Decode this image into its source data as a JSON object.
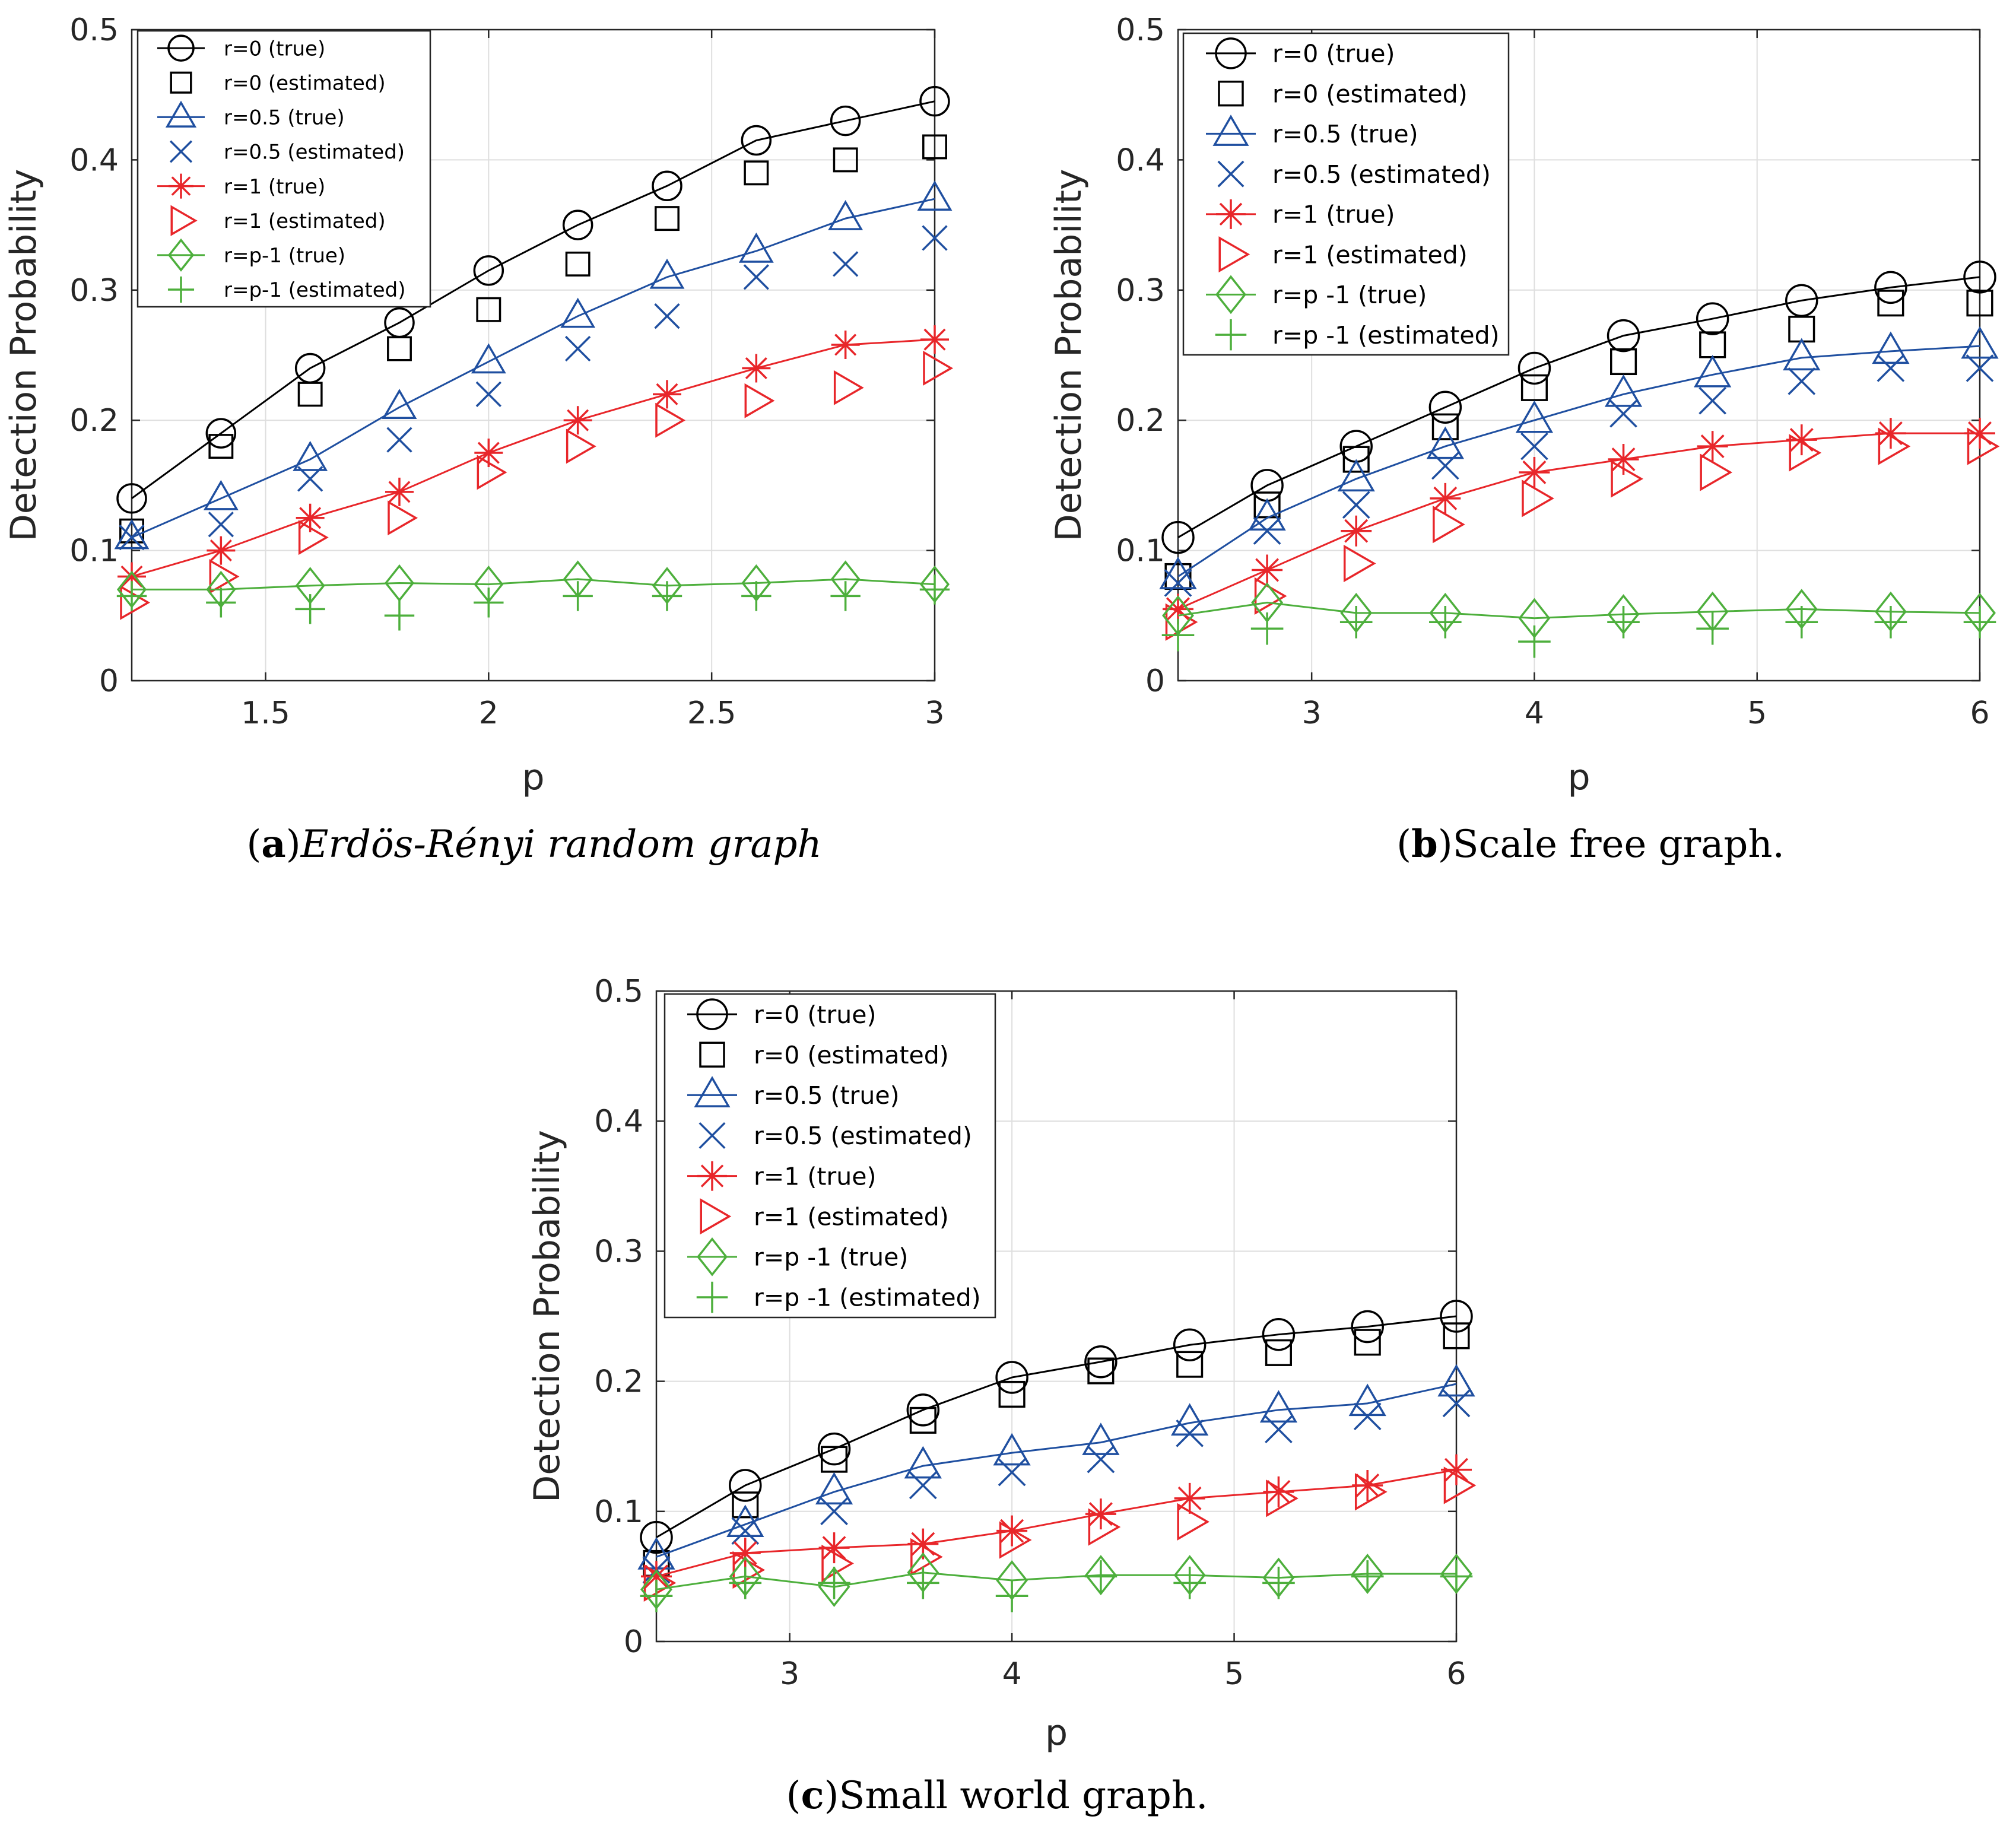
{
  "chart_data": [
    {
      "type": "line",
      "panel_letter": "a",
      "caption": "Erdös-Rényi random graph",
      "caption_italic": true,
      "xlabel": "p",
      "ylabel": "Detection Probability",
      "xlim": [
        1.2,
        3
      ],
      "ylim": [
        0,
        0.5
      ],
      "xticks": [
        1.5,
        2,
        2.5,
        3
      ],
      "xtick_labels": [
        "1.5",
        "2",
        "2.5",
        "3"
      ],
      "yticks": [
        0,
        0.1,
        0.2,
        0.3,
        0.4,
        0.5
      ],
      "ytick_labels": [
        "0",
        "0.1",
        "0.2",
        "0.3",
        "0.4",
        "0.5"
      ],
      "grid": true,
      "legend_position": "top-left",
      "x": [
        1.2,
        1.4,
        1.6,
        1.8,
        2.0,
        2.2,
        2.4,
        2.6,
        2.8,
        3.0
      ],
      "series": [
        {
          "name": "r=0 (true)",
          "marker": "circle",
          "line": true,
          "color": "#000000",
          "values": [
            0.14,
            0.19,
            0.24,
            0.275,
            0.315,
            0.35,
            0.38,
            0.415,
            0.43,
            0.445
          ]
        },
        {
          "name": "r=0 (estimated)",
          "marker": "square",
          "line": false,
          "color": "#000000",
          "values": [
            0.115,
            0.18,
            0.22,
            0.255,
            0.285,
            0.32,
            0.355,
            0.39,
            0.4,
            0.41
          ]
        },
        {
          "name": "r=0.5 (true)",
          "marker": "triangle",
          "line": true,
          "color": "#1f4fa0",
          "values": [
            0.11,
            0.14,
            0.17,
            0.21,
            0.245,
            0.28,
            0.31,
            0.33,
            0.355,
            0.37
          ]
        },
        {
          "name": "r=0.5 (estimated)",
          "marker": "x",
          "line": false,
          "color": "#1f4fa0",
          "values": [
            0.11,
            0.12,
            0.155,
            0.185,
            0.22,
            0.255,
            0.28,
            0.31,
            0.32,
            0.34
          ]
        },
        {
          "name": "r=1 (true)",
          "marker": "asterisk",
          "line": true,
          "color": "#e8262a",
          "values": [
            0.08,
            0.1,
            0.125,
            0.145,
            0.175,
            0.2,
            0.22,
            0.24,
            0.258,
            0.262
          ]
        },
        {
          "name": "r=1 (estimated)",
          "marker": "triangle-right",
          "line": false,
          "color": "#e8262a",
          "values": [
            0.06,
            0.08,
            0.11,
            0.125,
            0.16,
            0.18,
            0.2,
            0.215,
            0.225,
            0.24
          ]
        },
        {
          "name": "r=p-1 (true)",
          "marker": "diamond",
          "line": true,
          "color": "#4daf3c",
          "values": [
            0.07,
            0.07,
            0.073,
            0.075,
            0.074,
            0.078,
            0.073,
            0.075,
            0.078,
            0.074
          ]
        },
        {
          "name": "r=p-1  (estimated)",
          "marker": "plus",
          "line": false,
          "color": "#4daf3c",
          "values": [
            0.065,
            0.06,
            0.055,
            0.05,
            0.06,
            0.065,
            0.065,
            0.065,
            0.065,
            0.07
          ]
        }
      ]
    },
    {
      "type": "line",
      "panel_letter": "b",
      "caption": "Scale free graph.",
      "caption_italic": false,
      "xlabel": "p",
      "ylabel": "Detection Probability",
      "xlim": [
        2.4,
        6
      ],
      "ylim": [
        0,
        0.5
      ],
      "xticks": [
        3,
        4,
        5,
        6
      ],
      "xtick_labels": [
        "3",
        "4",
        "5",
        "6"
      ],
      "yticks": [
        0,
        0.1,
        0.2,
        0.3,
        0.4,
        0.5
      ],
      "ytick_labels": [
        "0",
        "0.1",
        "0.2",
        "0.3",
        "0.4",
        "0.5"
      ],
      "grid": true,
      "legend_position": "top-left",
      "x": [
        2.4,
        2.8,
        3.2,
        3.6,
        4.0,
        4.4,
        4.8,
        5.2,
        5.6,
        6.0
      ],
      "series": [
        {
          "name": "r=0 (true)",
          "marker": "circle",
          "line": true,
          "color": "#000000",
          "values": [
            0.11,
            0.15,
            0.18,
            0.21,
            0.24,
            0.265,
            0.278,
            0.292,
            0.302,
            0.31
          ]
        },
        {
          "name": "r=0 (estimated)",
          "marker": "square",
          "line": false,
          "color": "#000000",
          "values": [
            0.08,
            0.135,
            0.17,
            0.195,
            0.225,
            0.245,
            0.258,
            0.27,
            0.29,
            0.29
          ]
        },
        {
          "name": "r=0.5 (true)",
          "marker": "triangle",
          "line": true,
          "color": "#1f4fa0",
          "values": [
            0.08,
            0.125,
            0.155,
            0.18,
            0.2,
            0.22,
            0.235,
            0.248,
            0.253,
            0.257
          ]
        },
        {
          "name": "r=0.5 (estimated)",
          "marker": "x",
          "line": false,
          "color": "#1f4fa0",
          "values": [
            0.075,
            0.115,
            0.135,
            0.165,
            0.18,
            0.205,
            0.215,
            0.23,
            0.24,
            0.24
          ]
        },
        {
          "name": "r=1 (true)",
          "marker": "asterisk",
          "line": true,
          "color": "#e8262a",
          "values": [
            0.055,
            0.085,
            0.115,
            0.14,
            0.16,
            0.17,
            0.18,
            0.185,
            0.19,
            0.19
          ]
        },
        {
          "name": "r=1 (estimated)",
          "marker": "triangle-right",
          "line": false,
          "color": "#e8262a",
          "values": [
            0.045,
            0.065,
            0.09,
            0.12,
            0.14,
            0.155,
            0.16,
            0.175,
            0.18,
            0.18
          ]
        },
        {
          "name": "r=p -1 (true)",
          "marker": "diamond",
          "line": true,
          "color": "#4daf3c",
          "values": [
            0.05,
            0.06,
            0.052,
            0.052,
            0.048,
            0.051,
            0.053,
            0.055,
            0.053,
            0.052
          ]
        },
        {
          "name": "r=p -1 (estimated)",
          "marker": "plus",
          "line": false,
          "color": "#4daf3c",
          "values": [
            0.035,
            0.04,
            0.045,
            0.045,
            0.03,
            0.045,
            0.04,
            0.045,
            0.045,
            0.045
          ]
        }
      ]
    },
    {
      "type": "line",
      "panel_letter": "c",
      "caption": "Small world graph.",
      "caption_italic": false,
      "xlabel": "p",
      "ylabel": "Detection Probability",
      "xlim": [
        2.4,
        6
      ],
      "ylim": [
        0,
        0.5
      ],
      "xticks": [
        3,
        4,
        5,
        6
      ],
      "xtick_labels": [
        "3",
        "4",
        "5",
        "6"
      ],
      "yticks": [
        0,
        0.1,
        0.2,
        0.3,
        0.4,
        0.5
      ],
      "ytick_labels": [
        "0",
        "0.1",
        "0.2",
        "0.3",
        "0.4",
        "0.5"
      ],
      "grid": true,
      "legend_position": "top-left",
      "x": [
        2.4,
        2.8,
        3.2,
        3.6,
        4.0,
        4.4,
        4.8,
        5.2,
        5.6,
        6.0
      ],
      "series": [
        {
          "name": "r=0 (true)",
          "marker": "circle",
          "line": true,
          "color": "#000000",
          "values": [
            0.08,
            0.12,
            0.148,
            0.178,
            0.203,
            0.215,
            0.228,
            0.236,
            0.242,
            0.25
          ]
        },
        {
          "name": "r=0 (estimated)",
          "marker": "square",
          "line": false,
          "color": "#000000",
          "values": [
            0.06,
            0.105,
            0.14,
            0.17,
            0.19,
            0.208,
            0.213,
            0.222,
            0.23,
            0.235
          ]
        },
        {
          "name": "r=0.5 (true)",
          "marker": "triangle",
          "line": true,
          "color": "#1f4fa0",
          "values": [
            0.065,
            0.09,
            0.115,
            0.135,
            0.145,
            0.153,
            0.168,
            0.178,
            0.183,
            0.198
          ]
        },
        {
          "name": "r=0.5 (estimated)",
          "marker": "x",
          "line": false,
          "color": "#1f4fa0",
          "values": [
            0.055,
            0.085,
            0.1,
            0.12,
            0.13,
            0.14,
            0.16,
            0.163,
            0.173,
            0.183
          ]
        },
        {
          "name": "r=1 (true)",
          "marker": "asterisk",
          "line": true,
          "color": "#e8262a",
          "values": [
            0.05,
            0.068,
            0.072,
            0.075,
            0.085,
            0.098,
            0.11,
            0.115,
            0.12,
            0.132
          ]
        },
        {
          "name": "r=1 (estimated)",
          "marker": "triangle-right",
          "line": false,
          "color": "#e8262a",
          "values": [
            0.045,
            0.055,
            0.06,
            0.065,
            0.078,
            0.088,
            0.092,
            0.11,
            0.115,
            0.12
          ]
        },
        {
          "name": "r=p -1 (true)",
          "marker": "diamond",
          "line": true,
          "color": "#4daf3c",
          "values": [
            0.04,
            0.05,
            0.042,
            0.053,
            0.047,
            0.051,
            0.051,
            0.049,
            0.052,
            0.052
          ]
        },
        {
          "name": "r=p -1 (estimated)",
          "marker": "plus",
          "line": false,
          "color": "#4daf3c",
          "values": [
            0.035,
            0.045,
            0.045,
            0.045,
            0.035,
            0.05,
            0.045,
            0.045,
            0.05,
            0.05
          ]
        }
      ]
    }
  ]
}
